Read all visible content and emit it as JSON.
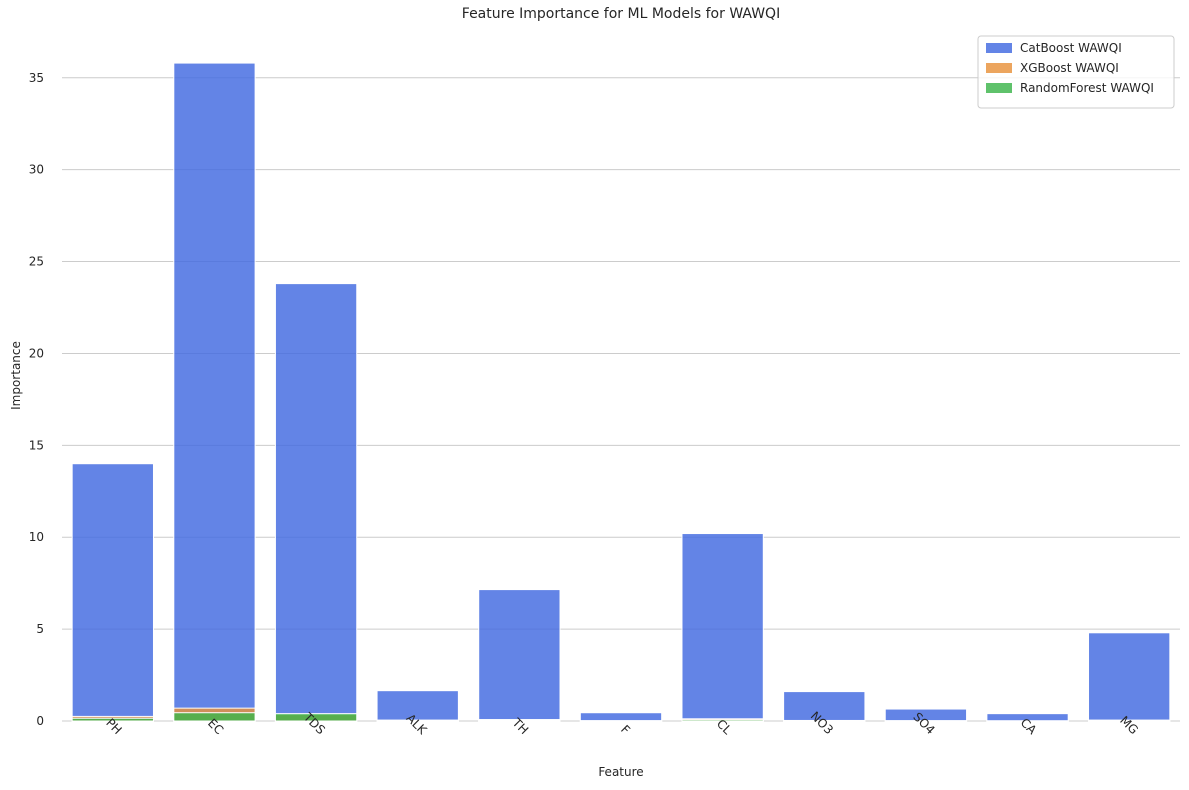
{
  "chart_data": {
    "type": "bar",
    "title": "Feature Importance for ML Models for WAWQI",
    "xlabel": "Feature",
    "ylabel": "Importance",
    "categories": [
      "PH",
      "EC",
      "TDS",
      "ALK",
      "TH",
      "F",
      "CL",
      "NO3",
      "SO4",
      "CA",
      "MG"
    ],
    "ylim": [
      0,
      37.6
    ],
    "yticks": [
      0,
      5,
      10,
      15,
      20,
      25,
      30,
      35
    ],
    "grid": "horizontal",
    "legend_position": "top-right",
    "overlay": true,
    "series": [
      {
        "name": "CatBoost WAWQI",
        "color": "#4169e1",
        "values": [
          14.0,
          35.8,
          23.8,
          1.65,
          7.15,
          0.45,
          10.2,
          1.6,
          0.65,
          0.4,
          4.8
        ]
      },
      {
        "name": "XGBoost WAWQI",
        "color": "#e8913b",
        "values": [
          0.25,
          0.7,
          0.35,
          0.05,
          0.08,
          0.02,
          0.12,
          0.03,
          0.02,
          0.01,
          0.05
        ]
      },
      {
        "name": "RandomForest WAWQI",
        "color": "#3cb44b",
        "values": [
          0.15,
          0.45,
          0.4,
          0.03,
          0.05,
          0.01,
          0.07,
          0.02,
          0.01,
          0.01,
          0.03
        ]
      }
    ]
  }
}
